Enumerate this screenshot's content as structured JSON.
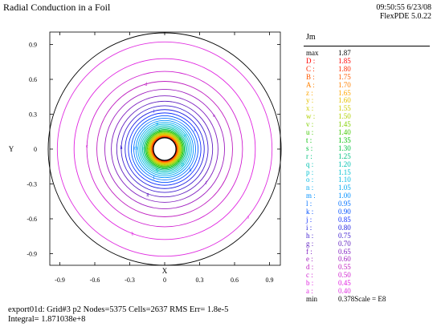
{
  "header": {
    "title": "Radial Conduction in a Foil",
    "timestamp": "09:50:55 6/23/08",
    "version": "FlexPDE 5.0.22"
  },
  "footer": {
    "line1": "export01d:  Grid#3  p2  Nodes=5375 Cells=2637 RMS Err= 1.8e-5",
    "line2": "Integral=  1.871038e+8"
  },
  "legend": {
    "variable": "Jm",
    "scale_text": "Scale = E8",
    "rows": [
      {
        "key": "max",
        "value": "1.87",
        "color": "#000000"
      },
      {
        "key": "D :",
        "value": "1.85",
        "color": "#ff0000"
      },
      {
        "key": "C :",
        "value": "1.80",
        "color": "#ff2a00"
      },
      {
        "key": "B :",
        "value": "1.75",
        "color": "#ff5a00"
      },
      {
        "key": "A :",
        "value": "1.70",
        "color": "#ff8000"
      },
      {
        "key": "z :",
        "value": "1.65",
        "color": "#ffa500"
      },
      {
        "key": "y :",
        "value": "1.60",
        "color": "#e6c000"
      },
      {
        "key": "x :",
        "value": "1.55",
        "color": "#cccc00"
      },
      {
        "key": "w :",
        "value": "1.50",
        "color": "#b0d000"
      },
      {
        "key": "v :",
        "value": "1.45",
        "color": "#80d000"
      },
      {
        "key": "u :",
        "value": "1.40",
        "color": "#40c800"
      },
      {
        "key": "t :",
        "value": "1.35",
        "color": "#00c000"
      },
      {
        "key": "s :",
        "value": "1.30",
        "color": "#00c040"
      },
      {
        "key": "r :",
        "value": "1.25",
        "color": "#00c080"
      },
      {
        "key": "q :",
        "value": "1.20",
        "color": "#00c0b0"
      },
      {
        "key": "p :",
        "value": "1.15",
        "color": "#00c0d0"
      },
      {
        "key": "o :",
        "value": "1.10",
        "color": "#00b8e0"
      },
      {
        "key": "n :",
        "value": "1.05",
        "color": "#00a8f0"
      },
      {
        "key": "m :",
        "value": "1.00",
        "color": "#0090ff"
      },
      {
        "key": "l :",
        "value": "0.95",
        "color": "#0070ff"
      },
      {
        "key": "k :",
        "value": "0.90",
        "color": "#0050ff"
      },
      {
        "key": "j :",
        "value": "0.85",
        "color": "#1030ff"
      },
      {
        "key": "i :",
        "value": "0.80",
        "color": "#2020e0"
      },
      {
        "key": "h :",
        "value": "0.75",
        "color": "#4020d0"
      },
      {
        "key": "g :",
        "value": "0.70",
        "color": "#6020c0"
      },
      {
        "key": "f :",
        "value": "0.65",
        "color": "#8020c0"
      },
      {
        "key": "e :",
        "value": "0.60",
        "color": "#a020c0"
      },
      {
        "key": "d :",
        "value": "0.55",
        "color": "#c020c0"
      },
      {
        "key": "c :",
        "value": "0.50",
        "color": "#d020d0"
      },
      {
        "key": "b :",
        "value": "0.45",
        "color": "#e020e0"
      },
      {
        "key": "a :",
        "value": "0.40",
        "color": "#e030e0"
      },
      {
        "key": "min",
        "value": "0.378",
        "color": "#000000"
      }
    ]
  },
  "chart_data": {
    "type": "contour",
    "title": "Radial Conduction in a Foil",
    "xlabel": "X",
    "ylabel": "Y",
    "xlim": [
      -1.0,
      1.0
    ],
    "ylim": [
      -1.0,
      1.0
    ],
    "xticks": [
      "-0.9",
      "-0.6",
      "-0.3",
      "0",
      "0.3",
      "0.6",
      "0.9"
    ],
    "yticks": [
      "0.9",
      "0.6",
      "0.3",
      "0",
      "-0.3",
      "-0.6",
      "-0.9"
    ],
    "xtick_values": [
      -0.9,
      -0.6,
      -0.3,
      0,
      0.3,
      0.6,
      0.9
    ],
    "ytick_values": [
      0.9,
      0.6,
      0.3,
      0,
      -0.3,
      -0.6,
      -0.9
    ],
    "outer_radius": 1.0,
    "inner_radius": 0.1,
    "field": "Jm",
    "max": 1.87,
    "min": 0.378,
    "scale": "E8",
    "contour_levels": [
      1.85,
      1.8,
      1.75,
      1.7,
      1.65,
      1.6,
      1.55,
      1.5,
      1.45,
      1.4,
      1.35,
      1.3,
      1.25,
      1.2,
      1.15,
      1.1,
      1.05,
      1.0,
      0.95,
      0.9,
      0.85,
      0.8,
      0.75,
      0.7,
      0.65,
      0.6,
      0.55,
      0.5,
      0.45,
      0.4
    ],
    "contour_labels": [
      "D",
      "C",
      "B",
      "A",
      "z",
      "y",
      "x",
      "w",
      "v",
      "u",
      "t",
      "s",
      "r",
      "q",
      "p",
      "o",
      "n",
      "m",
      "l",
      "k",
      "j",
      "i",
      "h",
      "g",
      "f",
      "e",
      "d",
      "c",
      "b",
      "a"
    ]
  }
}
